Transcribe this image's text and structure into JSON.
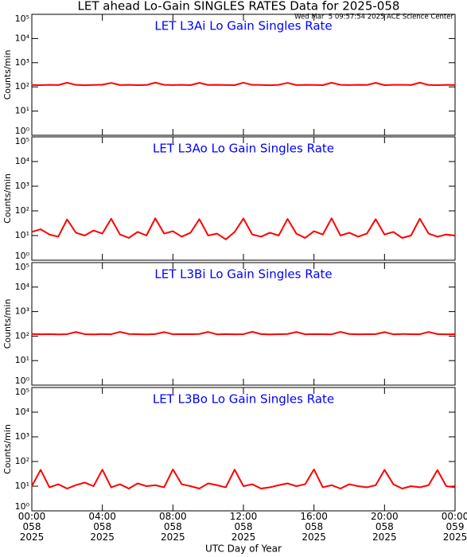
{
  "chart_data": [
    {
      "type": "line",
      "suptitle": "LET ahead Lo-Gain SINGLES RATES Data for 2025-058",
      "timestamp": "Wed Mar  5 09:57:54 2025 ACE Science Center",
      "title": "LET L3Ai Lo Gain Singles Rate",
      "ylabel": "Counts/min",
      "color": "#ff0000",
      "log": true,
      "xlim": [
        0,
        24
      ],
      "xticks": [
        0,
        4,
        8,
        12,
        16,
        20,
        24
      ],
      "ylim": [
        1,
        100000
      ],
      "yticks": [
        {
          "value": 1,
          "label": "10⁰"
        },
        {
          "value": 10,
          "label": "10¹"
        },
        {
          "value": 100,
          "label": "10²"
        },
        {
          "value": 1000,
          "label": "10³"
        },
        {
          "value": 10000,
          "label": "10⁴"
        },
        {
          "value": 100000,
          "label": "10⁵"
        }
      ],
      "x": [
        0,
        0.5,
        1,
        1.5,
        2,
        2.5,
        3,
        3.5,
        4,
        4.5,
        5,
        5.5,
        6,
        6.5,
        7,
        7.5,
        8,
        8.5,
        9,
        9.5,
        10,
        10.5,
        11,
        11.5,
        12,
        12.5,
        13,
        13.5,
        14,
        14.5,
        15,
        15.5,
        16,
        16.5,
        17,
        17.5,
        18,
        18.5,
        19,
        19.5,
        20,
        20.5,
        21,
        21.5,
        22,
        22.5,
        23,
        23.5,
        24
      ],
      "values": [
        120,
        118,
        122,
        119,
        148,
        121,
        117,
        120,
        123,
        146,
        119,
        121,
        118,
        120,
        150,
        122,
        119,
        121,
        118,
        147,
        120,
        122,
        119,
        118,
        149,
        121,
        120,
        117,
        122,
        146,
        119,
        121,
        120,
        118,
        148,
        122,
        119,
        121,
        120,
        147,
        118,
        121,
        122,
        119,
        150,
        120,
        118,
        121,
        119
      ]
    },
    {
      "type": "line",
      "title": "LET L3Ao Lo Gain Singles Rate",
      "ylabel": "Counts/min",
      "color": "#ff0000",
      "log": true,
      "xlim": [
        0,
        24
      ],
      "xticks": [
        0,
        4,
        8,
        12,
        16,
        20,
        24
      ],
      "ylim": [
        1,
        100000
      ],
      "yticks": [
        {
          "value": 1,
          "label": "10⁰"
        },
        {
          "value": 10,
          "label": "10¹"
        },
        {
          "value": 100,
          "label": "10²"
        },
        {
          "value": 1000,
          "label": "10³"
        },
        {
          "value": 10000,
          "label": "10⁴"
        },
        {
          "value": 100000,
          "label": "10⁵"
        }
      ],
      "x": [
        0,
        0.5,
        1,
        1.5,
        2,
        2.5,
        3,
        3.5,
        4,
        4.5,
        5,
        5.5,
        6,
        6.5,
        7,
        7.5,
        8,
        8.5,
        9,
        9.5,
        10,
        10.5,
        11,
        11.5,
        12,
        12.5,
        13,
        13.5,
        14,
        14.5,
        15,
        15.5,
        16,
        16.5,
        17,
        17.5,
        18,
        18.5,
        19,
        19.5,
        20,
        20.5,
        21,
        21.5,
        22,
        22.5,
        23,
        23.5,
        24
      ],
      "values": [
        14,
        18,
        11,
        9,
        45,
        13,
        10,
        16,
        12,
        48,
        11,
        8,
        14,
        10,
        50,
        12,
        15,
        9,
        13,
        46,
        10,
        12,
        7,
        14,
        49,
        11,
        9,
        13,
        10,
        47,
        12,
        8,
        15,
        11,
        50,
        10,
        13,
        9,
        12,
        46,
        11,
        14,
        8,
        10,
        48,
        12,
        9,
        11,
        10
      ]
    },
    {
      "type": "line",
      "title": "LET L3Bi Lo Gain Singles Rate",
      "ylabel": "Counts/min",
      "color": "#ff0000",
      "log": true,
      "xlim": [
        0,
        24
      ],
      "xticks": [
        0,
        4,
        8,
        12,
        16,
        20,
        24
      ],
      "ylim": [
        1,
        100000
      ],
      "yticks": [
        {
          "value": 1,
          "label": "10⁰"
        },
        {
          "value": 10,
          "label": "10¹"
        },
        {
          "value": 100,
          "label": "10²"
        },
        {
          "value": 1000,
          "label": "10³"
        },
        {
          "value": 10000,
          "label": "10⁴"
        },
        {
          "value": 100000,
          "label": "10⁵"
        }
      ],
      "x": [
        0,
        0.5,
        1,
        1.5,
        2,
        2.5,
        3,
        3.5,
        4,
        4.5,
        5,
        5.5,
        6,
        6.5,
        7,
        7.5,
        8,
        8.5,
        9,
        9.5,
        10,
        10.5,
        11,
        11.5,
        12,
        12.5,
        13,
        13.5,
        14,
        14.5,
        15,
        15.5,
        16,
        16.5,
        17,
        17.5,
        18,
        18.5,
        19,
        19.5,
        20,
        20.5,
        21,
        21.5,
        22,
        22.5,
        23,
        23.5,
        24
      ],
      "values": [
        122,
        119,
        121,
        118,
        120,
        147,
        120,
        118,
        121,
        119,
        149,
        122,
        120,
        118,
        121,
        146,
        119,
        121,
        120,
        122,
        148,
        118,
        121,
        119,
        120,
        150,
        121,
        118,
        120,
        122,
        147,
        119,
        121,
        120,
        118,
        149,
        122,
        119,
        120,
        121,
        146,
        118,
        122,
        120,
        119,
        148,
        121,
        119,
        120
      ]
    },
    {
      "type": "line",
      "title": "LET L3Bo Lo Gain Singles Rate",
      "ylabel": "Counts/min",
      "xlabel": "UTC Day of Year",
      "color": "#ff0000",
      "log": true,
      "xlim": [
        0,
        24
      ],
      "xticks": [
        {
          "value": 0,
          "label": "00:00\n058\n2025"
        },
        {
          "value": 4,
          "label": "04:00\n058\n2025"
        },
        {
          "value": 8,
          "label": "08:00\n058\n2025"
        },
        {
          "value": 12,
          "label": "12:00\n058\n2025"
        },
        {
          "value": 16,
          "label": "16:00\n058\n2025"
        },
        {
          "value": 20,
          "label": "20:00\n058\n2025"
        },
        {
          "value": 24,
          "label": "00:00\n059\n2025"
        }
      ],
      "ylim": [
        1,
        100000
      ],
      "yticks": [
        {
          "value": 1,
          "label": "10⁰"
        },
        {
          "value": 10,
          "label": "10¹"
        },
        {
          "value": 100,
          "label": "10²"
        },
        {
          "value": 1000,
          "label": "10³"
        },
        {
          "value": 10000,
          "label": "10⁴"
        },
        {
          "value": 100000,
          "label": "10⁵"
        }
      ],
      "x": [
        0,
        0.5,
        1,
        1.5,
        2,
        2.5,
        3,
        3.5,
        4,
        4.5,
        5,
        5.5,
        6,
        6.5,
        7,
        7.5,
        8,
        8.5,
        9,
        9.5,
        10,
        10.5,
        11,
        11.5,
        12,
        12.5,
        13,
        13.5,
        14,
        14.5,
        15,
        15.5,
        16,
        16.5,
        17,
        17.5,
        18,
        18.5,
        19,
        19.5,
        20,
        20.5,
        21,
        21.5,
        22,
        22.5,
        23,
        23.5,
        24
      ],
      "values": [
        10,
        46,
        9,
        12,
        8,
        11,
        14,
        10,
        47,
        9,
        12,
        8,
        13,
        10,
        11,
        9,
        48,
        12,
        10,
        8,
        13,
        11,
        9,
        47,
        10,
        12,
        8,
        9,
        11,
        13,
        10,
        12,
        48,
        9,
        11,
        8,
        12,
        10,
        9,
        11,
        46,
        12,
        8,
        10,
        9,
        11,
        45,
        10,
        9
      ]
    }
  ]
}
